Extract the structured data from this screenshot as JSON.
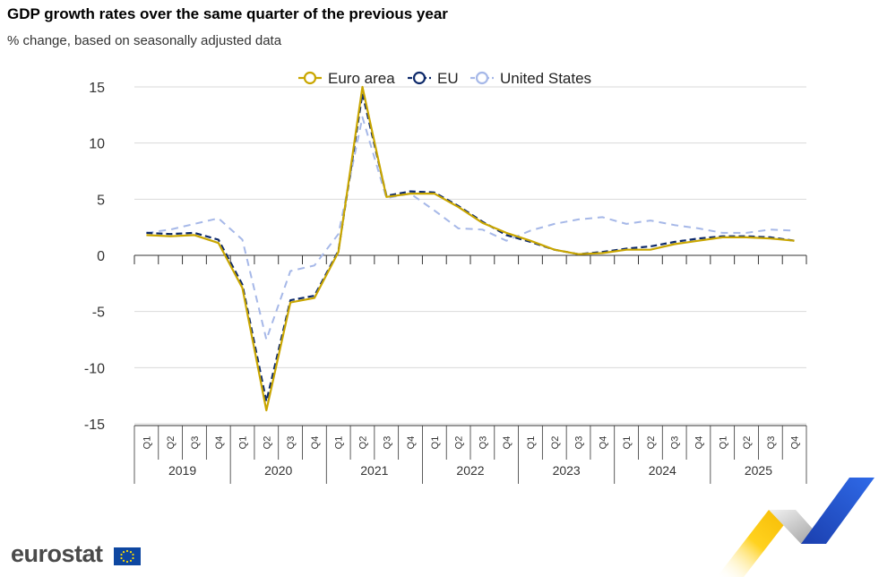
{
  "header": {
    "title": "GDP growth rates over the same quarter of the previous year",
    "subtitle": "% change, based on seasonally adjusted data"
  },
  "logo": {
    "text": "eurostat"
  },
  "colors": {
    "euro_area": "#c9a600",
    "eu": "#0e2a6b",
    "us": "#a6b8e8",
    "grid": "#d9d9d9",
    "axis": "#333333"
  },
  "chart_data": {
    "type": "line",
    "title": "GDP growth rates over the same quarter of the previous year",
    "subtitle": "% change, based on seasonally adjusted data",
    "xlabel": "",
    "ylabel": "",
    "ylim": [
      -15,
      15
    ],
    "yticks": [
      15,
      10,
      5,
      0,
      -5,
      -10,
      -15
    ],
    "grid": true,
    "legend_position": "top",
    "years": [
      "2019",
      "2020",
      "2021",
      "2022",
      "2023",
      "2024",
      "2025"
    ],
    "quarters": [
      "Q1",
      "Q2",
      "Q3",
      "Q4"
    ],
    "series": [
      {
        "name": "Euro area",
        "style": "solid",
        "values": [
          1.8,
          1.7,
          1.8,
          1.1,
          -2.9,
          -13.8,
          -4.2,
          -3.8,
          0.3,
          15.0,
          5.2,
          5.5,
          5.5,
          4.3,
          2.9,
          2.0,
          1.3,
          0.5,
          0.1,
          0.2,
          0.5,
          0.5,
          1.0,
          1.3,
          1.6,
          1.6,
          1.5,
          1.3
        ]
      },
      {
        "name": "EU",
        "style": "dashed",
        "values": [
          2.0,
          1.9,
          2.0,
          1.4,
          -2.6,
          -13.0,
          -4.0,
          -3.6,
          0.4,
          14.4,
          5.3,
          5.7,
          5.6,
          4.4,
          3.0,
          1.8,
          1.2,
          0.5,
          0.1,
          0.3,
          0.6,
          0.8,
          1.2,
          1.5,
          1.7,
          1.7,
          1.6,
          1.3
        ]
      },
      {
        "name": "United States",
        "style": "dashed",
        "values": [
          2.0,
          2.3,
          2.8,
          3.3,
          1.4,
          -7.5,
          -1.4,
          -0.9,
          1.9,
          12.3,
          5.1,
          5.5,
          4.0,
          2.4,
          2.3,
          1.3,
          2.2,
          2.8,
          3.2,
          3.4,
          2.8,
          3.1,
          2.7,
          2.4,
          2.0,
          2.0,
          2.3,
          2.2
        ]
      }
    ]
  }
}
